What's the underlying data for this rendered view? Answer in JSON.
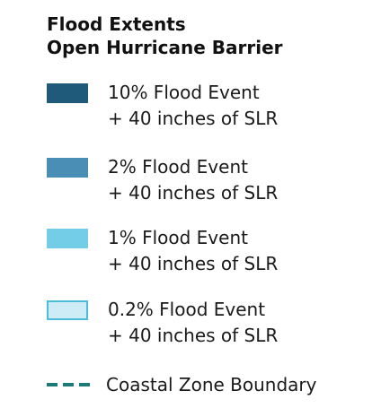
{
  "legend": {
    "title_line1": "Flood Extents",
    "title_line2": "Open Hurricane Barrier",
    "items": [
      {
        "line1": "10% Flood Event",
        "line2": "+ 40 inches of SLR",
        "fill": "#1f5a7a",
        "border": "#1f5a7a"
      },
      {
        "line1": "2% Flood Event",
        "line2": "+ 40 inches of SLR",
        "fill": "#4a8db5",
        "border": "#4a8db5"
      },
      {
        "line1": "1% Flood Event",
        "line2": "+ 40 inches of SLR",
        "fill": "#74cde6",
        "border": "#74cde6"
      },
      {
        "line1": "0.2% Flood Event",
        "line2": "+ 40 inches of SLR",
        "fill": "#cdecf5",
        "border": "#4bbcdc"
      }
    ],
    "boundary": {
      "label": "Coastal Zone Boundary",
      "color": "#1d7a7a"
    }
  }
}
